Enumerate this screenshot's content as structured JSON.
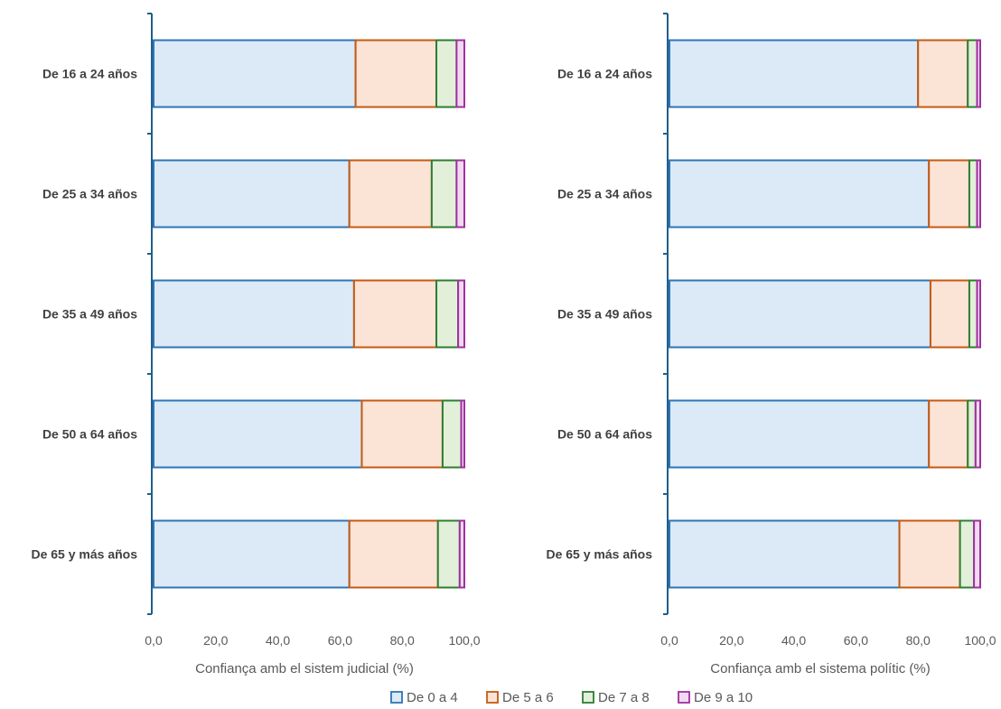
{
  "chart_data": [
    {
      "type": "bar",
      "orientation": "horizontal",
      "stacked": true,
      "categories": [
        "De 16 a 24 años",
        "De 25 a 34 años",
        "De 35 a 49 años",
        "De 50 a 64 años",
        "De 65 y más años"
      ],
      "series": [
        {
          "name": "De 0 a 4",
          "values": [
            65.0,
            63.0,
            64.5,
            67.0,
            63.0
          ]
        },
        {
          "name": "De 5 a 6",
          "values": [
            26.0,
            26.5,
            26.5,
            26.0,
            28.5
          ]
        },
        {
          "name": "De 7 a 8",
          "values": [
            6.5,
            8.0,
            7.0,
            6.0,
            7.0
          ]
        },
        {
          "name": "De 9 a 10",
          "values": [
            2.5,
            2.5,
            2.0,
            1.0,
            1.5
          ]
        }
      ],
      "xlabel": "Confiança amb el sistem judicial (%)",
      "xlim": [
        0,
        100
      ],
      "xticks": [
        "0,0",
        "20,0",
        "40,0",
        "60,0",
        "80,0",
        "100,0"
      ]
    },
    {
      "type": "bar",
      "orientation": "horizontal",
      "stacked": true,
      "categories": [
        "De 16 a 24 años",
        "De 25 a 34 años",
        "De 35 a 49 años",
        "De 50 a 64 años",
        "De 65 y más años"
      ],
      "series": [
        {
          "name": "De 0 a 4",
          "values": [
            80.0,
            83.5,
            84.0,
            83.5,
            74.0
          ]
        },
        {
          "name": "De 5 a 6",
          "values": [
            16.0,
            13.0,
            12.5,
            12.5,
            19.5
          ]
        },
        {
          "name": "De 7 a 8",
          "values": [
            3.0,
            2.5,
            2.5,
            2.5,
            4.5
          ]
        },
        {
          "name": "De 9 a 10",
          "values": [
            1.0,
            1.0,
            1.0,
            1.5,
            2.0
          ]
        }
      ],
      "xlabel": "Confiança amb el sistema polític (%)",
      "xlim": [
        0,
        100
      ],
      "xticks": [
        "0,0",
        "20,0",
        "40,0",
        "60,0",
        "80,0",
        "100,0"
      ]
    }
  ],
  "legend": {
    "position": "bottom",
    "items": [
      {
        "label": "De 0 a 4",
        "fill": "#dce9f6",
        "stroke": "#2e75b6"
      },
      {
        "label": "De 5 a 6",
        "fill": "#fbe3d6",
        "stroke": "#c55a11"
      },
      {
        "label": "De 7 a 8",
        "fill": "#e2f0d9",
        "stroke": "#2e7d32"
      },
      {
        "label": "De 9 a 10",
        "fill": "#f2d9f2",
        "stroke": "#a030a0"
      }
    ]
  },
  "colors": {
    "axis": "#1f5f8b",
    "text": "#404040"
  }
}
